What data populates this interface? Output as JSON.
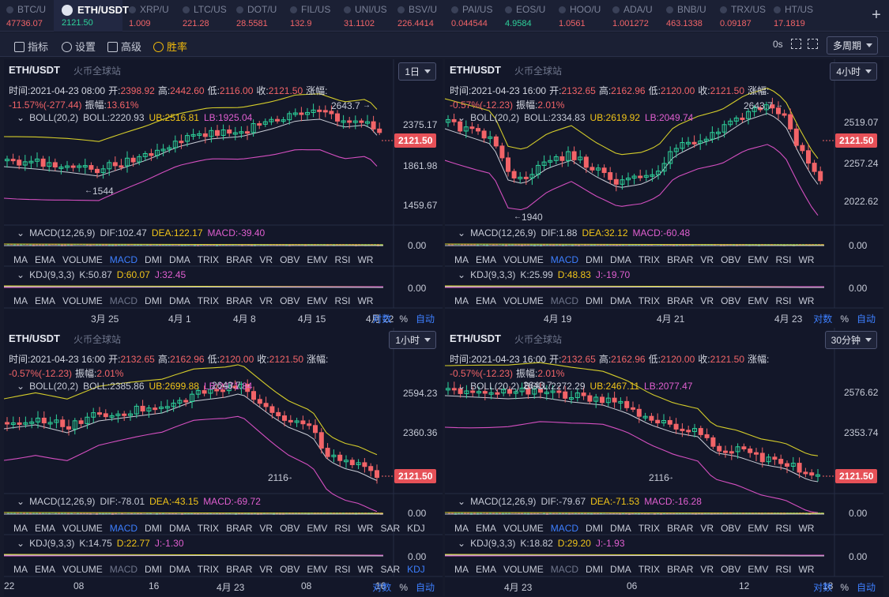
{
  "tabs": [
    {
      "name": "BTC/U",
      "price": "47736.07",
      "dir": "dn"
    },
    {
      "name": "ETH/USDT",
      "price": "2121.50",
      "dir": "up",
      "selected": true
    },
    {
      "name": "XRP/U",
      "price": "1.009",
      "dir": "dn"
    },
    {
      "name": "LTC/US",
      "price": "221.28",
      "dir": "dn"
    },
    {
      "name": "DOT/U",
      "price": "28.5581",
      "dir": "dn"
    },
    {
      "name": "FIL/US",
      "price": "132.9",
      "dir": "dn"
    },
    {
      "name": "UNI/US",
      "price": "31.1102",
      "dir": "dn"
    },
    {
      "name": "BSV/U",
      "price": "226.4414",
      "dir": "dn"
    },
    {
      "name": "PAI/US",
      "price": "0.044544",
      "dir": "dn"
    },
    {
      "name": "EOS/U",
      "price": "4.9584",
      "dir": "up"
    },
    {
      "name": "HOO/U",
      "price": "1.0561",
      "dir": "dn"
    },
    {
      "name": "ADA/U",
      "price": "1.001272",
      "dir": "dn"
    },
    {
      "name": "BNB/U",
      "price": "463.1338",
      "dir": "dn"
    },
    {
      "name": "TRX/US",
      "price": "0.09187",
      "dir": "dn"
    },
    {
      "name": "HT/US",
      "price": "17.1819",
      "dir": "dn"
    }
  ],
  "add_icon": "plus",
  "toolbar": {
    "indicators": "指标",
    "settings": "设置",
    "advanced": "高级",
    "winrate": "胜率",
    "countdown": "0s",
    "multi": "多周期"
  },
  "common": {
    "pair": "ETH/USDT",
    "exchange": "火币全球站",
    "time_lbl": "时间:",
    "open_lbl": "开:",
    "high_lbl": "高:",
    "low_lbl": "低:",
    "close_lbl": "收:",
    "chg_lbl": "涨幅:",
    "amp_lbl": "振幅:",
    "boll": "BOLL(20,2)",
    "boll_lbl": "BOLL:",
    "ub_lbl": "UB:",
    "lb_lbl": "LB:",
    "macd": "MACD(12,26,9)",
    "dif_lbl": "DIF:",
    "dea_lbl": "DEA:",
    "macd_lbl": "MACD:",
    "kdj": "KDJ(9,3,3)",
    "k_lbl": "K:",
    "d_lbl": "D:",
    "j_lbl": "J:",
    "zero": "0.00",
    "last_price": "2121.50",
    "log": "对数",
    "pct": "%",
    "auto": "自动"
  },
  "indicator_row": [
    "MA",
    "EMA",
    "VOLUME",
    "MACD",
    "DMI",
    "DMA",
    "TRIX",
    "BRAR",
    "VR",
    "OBV",
    "EMV",
    "RSI",
    "WR"
  ],
  "indicator_row_ext": [
    "MA",
    "EMA",
    "VOLUME",
    "MACD",
    "DMI",
    "DMA",
    "TRIX",
    "BRAR",
    "VR",
    "OBV",
    "EMV",
    "RSI",
    "WR",
    "SAR",
    "KDJ"
  ],
  "panels": [
    {
      "period": "1日",
      "time": "2021-04-23 08:00",
      "open": "2398.92",
      "high": "2442.60",
      "low": "2116.00",
      "close": "2121.50",
      "chg": "-11.57%(-277.44)",
      "amp": "13.61%",
      "boll": "2220.93",
      "ub": "2516.81",
      "lb": "1925.04",
      "dif": "102.47",
      "dea": "122.17",
      "macdv": "-39.40",
      "k": "50.87",
      "d": "60.07",
      "j": "32.45",
      "hi_label": "2643.7",
      "lo_label": "1544",
      "axis": [
        "2375.17",
        "1861.98",
        "1459.67"
      ],
      "dates": [
        "3月 25",
        "4月 1",
        "4月 8",
        "4月 15",
        "4月 22"
      ]
    },
    {
      "period": "4小时",
      "time": "2021-04-23 16:00",
      "open": "2132.65",
      "high": "2162.96",
      "low": "2120.00",
      "close": "2121.50",
      "chg": "-0.57%(-12.23)",
      "amp": "2.01%",
      "boll": "2334.83",
      "ub": "2619.92",
      "lb": "2049.74",
      "dif": "1.88",
      "dea": "32.12",
      "macdv": "-60.48",
      "k": "25.99",
      "d": "48.83",
      "j": "-19.70",
      "hi_label": "2643.7",
      "lo_label": "1940",
      "axis": [
        "2519.07",
        "2257.24",
        "2022.62"
      ],
      "dates": [
        "4月 19",
        "4月 21",
        "4月 23"
      ]
    },
    {
      "period": "1小时",
      "time": "2021-04-23 16:00",
      "open": "2132.65",
      "high": "2162.96",
      "low": "2120.00",
      "close": "2121.50",
      "chg": "-0.57%(-12.23)",
      "amp": "2.01%",
      "boll": "2385.86",
      "ub": "2699.88",
      "lb": "2071.84",
      "dif": "-78.01",
      "dea": "-43.15",
      "macdv": "-69.72",
      "k": "14.75",
      "d": "22.77",
      "j": "-1.30",
      "hi_label": "2643.7",
      "lo_label": "2116",
      "axis": [
        "2594.23",
        "2360.36"
      ],
      "dates": [
        "22",
        "08",
        "16",
        "4月 23",
        "08",
        "16"
      ]
    },
    {
      "period": "30分钟",
      "time": "2021-04-23 16:00",
      "open": "2132.65",
      "high": "2162.96",
      "low": "2120.00",
      "close": "2121.50",
      "chg": "-0.57%(-12.23)",
      "amp": "2.01%",
      "boll": "2272.29",
      "ub": "2467.11",
      "lb": "2077.47",
      "dif": "-79.67",
      "dea": "-71.53",
      "macdv": "-16.28",
      "k": "18.82",
      "d": "29.20",
      "j": "-1.93",
      "hi_label": "2643.7",
      "lo_label": "2116",
      "axis": [
        "2576.62",
        "2353.74"
      ],
      "dates": [
        "4月 23",
        "06",
        "12",
        "18"
      ]
    }
  ],
  "colors": {
    "up": "#2ed19a",
    "down": "#f26468",
    "mid": "#c9ccd6",
    "ub": "#d4cc2a",
    "lb": "#d44fc0"
  }
}
